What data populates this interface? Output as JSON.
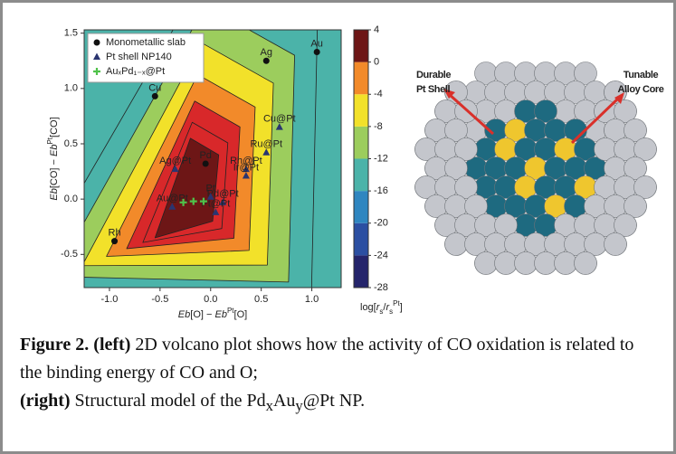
{
  "chart_data": {
    "type": "scatter",
    "xlabel_parts": [
      "Eb",
      "[O] − ",
      "Eb",
      "Pt",
      "[O]"
    ],
    "ylabel_parts": [
      "Eb",
      "[CO] − ",
      "Eb",
      "Pt",
      "[CO]"
    ],
    "xlim": [
      -1.25,
      1.29
    ],
    "ylim": [
      -0.8,
      1.53
    ],
    "xticks": [
      {
        "value": -1.0,
        "label": "-1.0"
      },
      {
        "value": -0.5,
        "label": "-0.5"
      },
      {
        "value": 0.0,
        "label": "0.0"
      },
      {
        "value": 0.5,
        "label": "0.5"
      },
      {
        "value": 1.0,
        "label": "1.0"
      }
    ],
    "yticks": [
      {
        "value": -0.5,
        "label": "-0.5"
      },
      {
        "value": 0.0,
        "label": "0.0"
      },
      {
        "value": 0.5,
        "label": "0.5"
      },
      {
        "value": 1.0,
        "label": "1.0"
      },
      {
        "value": 1.5,
        "label": "1.5"
      }
    ],
    "legend": "upper left",
    "series": [
      {
        "name": "Monometallic slab",
        "marker": "circle",
        "color": "#111111",
        "x": [
          1.05,
          0.55,
          -0.55,
          -0.05,
          -0.95
        ],
        "y": [
          1.33,
          1.25,
          0.93,
          0.32,
          -0.38
        ],
        "labels": [
          "Au",
          "Ag",
          "Cu",
          "Pd",
          "Rh"
        ]
      },
      {
        "name": "Pt shell NP140",
        "marker": "triangle",
        "color": "#2a3570",
        "x": [
          0.68,
          0.55,
          0.35,
          0.35,
          -0.35,
          0.12,
          0.05,
          -0.38,
          0.0
        ],
        "y": [
          0.65,
          0.42,
          0.27,
          0.21,
          0.27,
          -0.03,
          -0.12,
          -0.07,
          0.02
        ],
        "labels": [
          "Cu@Pt",
          "Ru@Pt",
          "Rh@Pt",
          "Ir@Pt",
          "Ag@Pt",
          "Pd@Pt",
          "Pt@Pt",
          "Au@Pt",
          "Pt"
        ]
      },
      {
        "name": "AuₓPd₁₋ₓ@Pt",
        "marker": "cross",
        "color": "#4fc24a",
        "x": [
          -0.27,
          -0.17,
          -0.07
        ],
        "y": [
          -0.03,
          -0.02,
          -0.02
        ]
      }
    ],
    "colorbar": {
      "label_parts": [
        "log[",
        "r",
        "s",
        "/",
        "r",
        "s",
        "Pt",
        "]"
      ],
      "lim": [
        -28,
        4
      ],
      "ticks": [
        4,
        0,
        -4,
        -8,
        -12,
        -16,
        -20,
        -24,
        -28
      ],
      "colors": [
        "#24246b",
        "#2b4fa2",
        "#2f86c0",
        "#4bb3a9",
        "#9ccd5d",
        "#f2e12a",
        "#f28a2a",
        "#d8282a",
        "#6d1616"
      ]
    }
  },
  "model": {
    "labels": [
      [
        "Durable",
        "Pt Shell"
      ],
      [
        "Tunable",
        "Alloy Core"
      ]
    ]
  },
  "caption": {
    "figure": "Figure 2.",
    "left": "(left)",
    "left_text": " 2D volcano plot shows how the activity of CO oxidation is related to the binding energy of CO and O;",
    "right": "(right)",
    "right_text": " Structural model of the Pd",
    "sub1": "x",
    "mid": "Au",
    "sub2": "y",
    "end": "@Pt NP."
  }
}
